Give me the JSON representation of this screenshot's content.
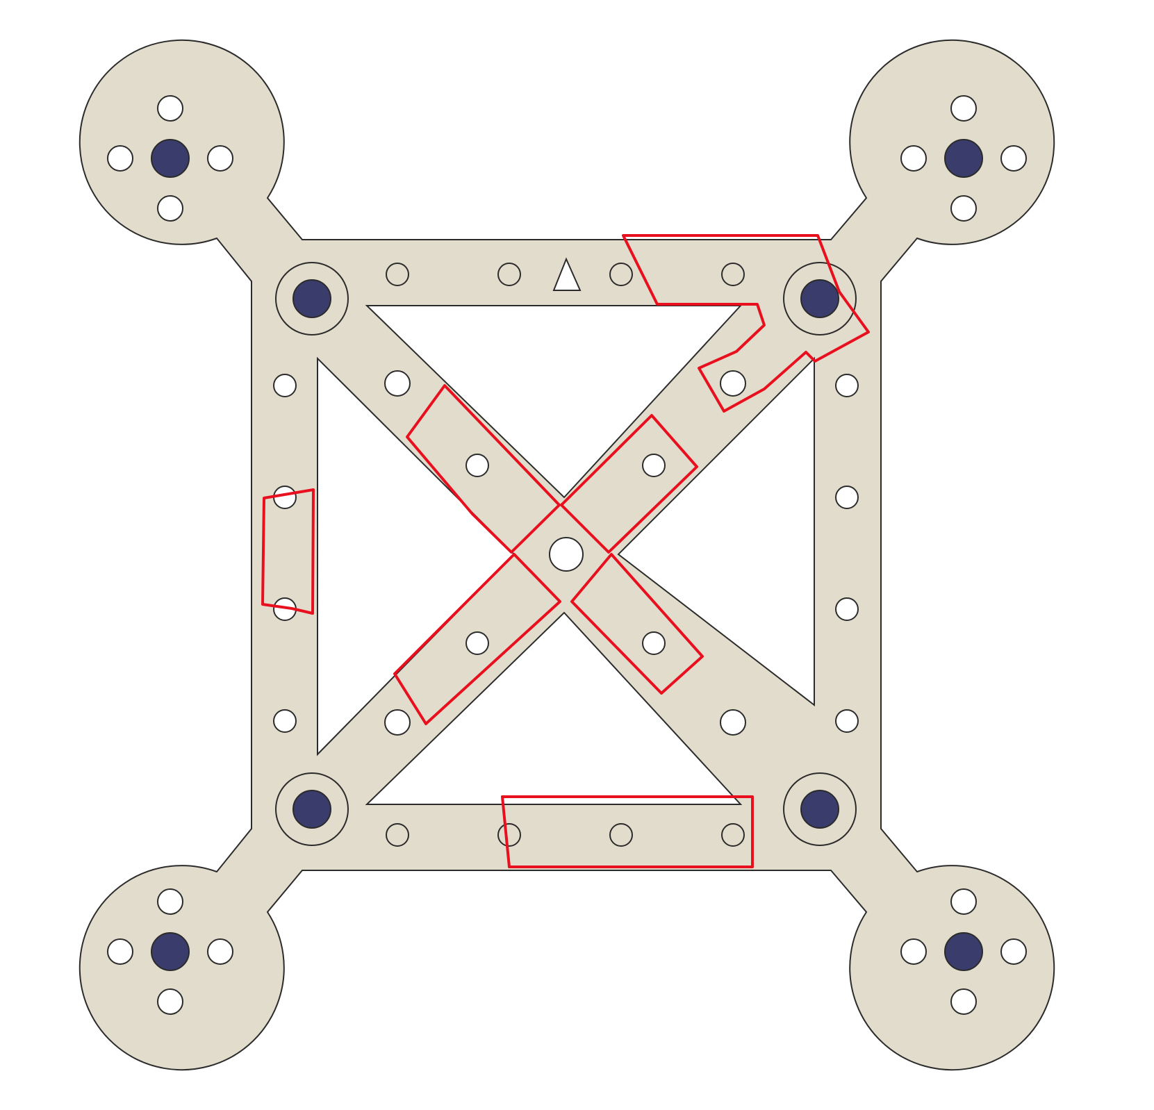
{
  "diagram": {
    "description_type": "quadcopter-frame-plate",
    "colors": {
      "plate_fill": "#e2dccc",
      "plate_stroke": "#2b2b2b",
      "hole_white": "#ffffff",
      "hole_navy": "#3a3d6b",
      "hole_filled": "#e2dccc",
      "highlight": "#e8101e"
    },
    "labels": []
  }
}
